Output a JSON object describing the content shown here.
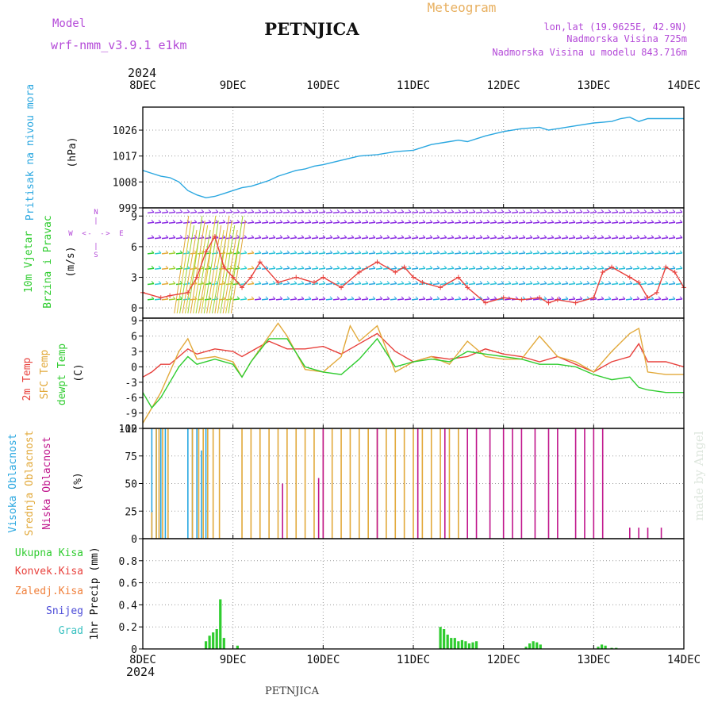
{
  "header": {
    "model_label": "Model",
    "model_name": "wrf-nmm_v3.9.1  e1km",
    "station": "PETNJICA",
    "product": "Meteogram",
    "lonlat": "lon,lat (19.9625E, 42.9N)",
    "altitude": "Nadmorska Visina 725m",
    "model_altitude": "Nadmorska Visina u modelu 843.716m",
    "year_top": "2024",
    "year_bottom": "2024",
    "footer_station": "PETNJICA",
    "watermark": "made by Angel"
  },
  "colors": {
    "pressure": "#2aa7e0",
    "temp2m": "#e8413c",
    "sfc_temp": "#e2a93a",
    "dewpoint": "#2fcc2f",
    "high_cloud": "#2aa7e0",
    "mid_cloud": "#e2a93a",
    "low_cloud": "#c0168c",
    "total_precip": "#2fcc2f",
    "conv_precip": "#e8413c",
    "frz_precip": "#f0803c",
    "snow": "#4b4bd8",
    "graupel": "#38c0c0",
    "purple_text": "#b44ad8",
    "gold_text": "#e8b060"
  },
  "chart_data": [
    {
      "type": "line",
      "id": "pressure",
      "ylabel": [
        "Pritisak na nivou mora",
        "(hPa)"
      ],
      "yticks": [
        999,
        1008,
        1017,
        1026
      ],
      "ylim": [
        999,
        1034
      ],
      "x_unit": "days from 2024-12-08 00Z",
      "xlim": [
        0,
        6
      ],
      "x_tick_labels": [
        "8DEC",
        "9DEC",
        "10DEC",
        "11DEC",
        "12DEC",
        "13DEC",
        "14DEC"
      ],
      "grid": true,
      "series": [
        {
          "key": "pressure",
          "x": [
            0,
            0.1,
            0.2,
            0.3,
            0.4,
            0.5,
            0.6,
            0.7,
            0.8,
            0.9,
            1.0,
            1.1,
            1.2,
            1.3,
            1.4,
            1.5,
            1.6,
            1.7,
            1.8,
            1.9,
            2.0,
            2.2,
            2.4,
            2.6,
            2.8,
            3.0,
            3.2,
            3.4,
            3.5,
            3.6,
            3.8,
            4.0,
            4.2,
            4.4,
            4.5,
            4.6,
            4.8,
            5.0,
            5.2,
            5.3,
            5.4,
            5.5,
            5.6,
            5.8,
            6.0
          ],
          "y": [
            1012,
            1011,
            1010,
            1009.5,
            1008,
            1005,
            1003.5,
            1002.5,
            1003,
            1004,
            1005,
            1006,
            1006.5,
            1007.5,
            1008.5,
            1010,
            1011,
            1012,
            1012.5,
            1013.5,
            1014,
            1015.5,
            1017,
            1017.5,
            1018.5,
            1019,
            1021,
            1022,
            1022.5,
            1022,
            1024,
            1025.5,
            1026.5,
            1027,
            1026,
            1026.5,
            1027.5,
            1028.5,
            1029,
            1030,
            1030.5,
            1029,
            1030,
            1030,
            1030
          ]
        }
      ]
    },
    {
      "type": "line",
      "id": "wind",
      "ylabel": [
        "10m Vjetar",
        "Brzina i Pravac",
        "(m/s)"
      ],
      "legend_labels": [
        "N",
        "W",
        "E",
        "S",
        "<",
        ">",
        "|",
        "-"
      ],
      "yticks": [
        0,
        3,
        6,
        9
      ],
      "ylim": [
        -1,
        9.8
      ],
      "xlim": [
        0,
        6
      ],
      "grid": true,
      "series": [
        {
          "name": "speed",
          "key": "temp2m",
          "x": [
            0,
            0.2,
            0.3,
            0.5,
            0.6,
            0.7,
            0.8,
            0.9,
            1.0,
            1.1,
            1.2,
            1.3,
            1.5,
            1.7,
            1.9,
            2.0,
            2.2,
            2.4,
            2.6,
            2.8,
            2.9,
            3.0,
            3.1,
            3.3,
            3.5,
            3.6,
            3.8,
            4.0,
            4.2,
            4.4,
            4.5,
            4.6,
            4.8,
            5.0,
            5.1,
            5.2,
            5.4,
            5.5,
            5.6,
            5.7,
            5.8,
            5.9,
            6.0
          ],
          "y": [
            1.5,
            1,
            1.2,
            1.5,
            3,
            5.5,
            7,
            4,
            3,
            2,
            3,
            4.5,
            2.5,
            3,
            2.5,
            3,
            2,
            3.5,
            4.5,
            3.5,
            4,
            3,
            2.5,
            2,
            3,
            2,
            0.5,
            1,
            0.8,
            1,
            0.5,
            0.8,
            0.5,
            1,
            3.5,
            4,
            3,
            2.5,
            1,
            1.5,
            4,
            3.5,
            2
          ]
        }
      ],
      "wind_rows": [
        0.8,
        2.3,
        3.8,
        5.3,
        6.8,
        8.3,
        9.3
      ]
    },
    {
      "type": "line",
      "id": "temperature",
      "ylabel": [
        "2m Temp",
        "SFC Temp",
        "dewpt Temp",
        "(C)"
      ],
      "yticks": [
        -12,
        -9,
        -6,
        -3,
        0,
        3,
        6,
        9
      ],
      "ylim": [
        -12,
        9.5
      ],
      "xlim": [
        0,
        6
      ],
      "grid": true,
      "series": [
        {
          "name": "2m Temp",
          "key": "temp2m",
          "x": [
            0,
            0.1,
            0.2,
            0.3,
            0.4,
            0.5,
            0.6,
            0.8,
            1.0,
            1.1,
            1.2,
            1.4,
            1.6,
            1.8,
            2.0,
            2.2,
            2.4,
            2.6,
            2.8,
            3.0,
            3.2,
            3.4,
            3.6,
            3.8,
            4.0,
            4.2,
            4.4,
            4.6,
            4.8,
            5.0,
            5.2,
            5.4,
            5.5,
            5.6,
            5.8,
            6.0
          ],
          "y": [
            -2,
            -1,
            0.5,
            0.5,
            2,
            3.5,
            2.5,
            3.5,
            3,
            2,
            3,
            5,
            3.5,
            3.5,
            4,
            2.5,
            4.5,
            6.5,
            3,
            1,
            2,
            1.5,
            2,
            3.5,
            2.5,
            2,
            1,
            2,
            0.5,
            -1,
            1,
            2,
            4.5,
            1,
            1,
            0
          ]
        },
        {
          "name": "SFC Temp",
          "key": "sfc_temp",
          "x": [
            0,
            0.1,
            0.2,
            0.3,
            0.4,
            0.5,
            0.6,
            0.8,
            1.0,
            1.1,
            1.2,
            1.4,
            1.5,
            1.6,
            1.8,
            2.0,
            2.2,
            2.3,
            2.4,
            2.6,
            2.8,
            3.0,
            3.2,
            3.4,
            3.6,
            3.8,
            4.0,
            4.2,
            4.4,
            4.6,
            4.8,
            5.0,
            5.2,
            5.4,
            5.5,
            5.6,
            5.8,
            6.0
          ],
          "y": [
            -11,
            -8,
            -5,
            -1,
            3,
            5.5,
            1.5,
            2,
            1,
            -2,
            1,
            6,
            8.5,
            6,
            -0.5,
            -1,
            2,
            8,
            5,
            8,
            -1,
            1,
            2,
            0.5,
            5,
            2,
            1.5,
            1.5,
            6,
            2,
            1,
            -1,
            3,
            6.5,
            7.5,
            -1,
            -1.5,
            -1.5
          ]
        },
        {
          "name": "dewpt Temp",
          "key": "dewpoint",
          "x": [
            0,
            0.1,
            0.2,
            0.3,
            0.4,
            0.5,
            0.6,
            0.8,
            1.0,
            1.1,
            1.2,
            1.4,
            1.6,
            1.8,
            2.0,
            2.2,
            2.4,
            2.6,
            2.8,
            3.0,
            3.2,
            3.4,
            3.6,
            3.8,
            4.0,
            4.2,
            4.4,
            4.6,
            4.8,
            5.0,
            5.2,
            5.4,
            5.5,
            5.6,
            5.8,
            6.0
          ],
          "y": [
            -5,
            -8,
            -6,
            -3,
            0,
            2,
            0.5,
            1.5,
            0.5,
            -2,
            1,
            5.5,
            5.5,
            0,
            -1,
            -1.5,
            1.5,
            5.5,
            0,
            1,
            1.5,
            1,
            3,
            2.5,
            2,
            1.5,
            0.5,
            0.5,
            0,
            -1.5,
            -2.5,
            -2,
            -4,
            -4.5,
            -5,
            -5
          ]
        }
      ]
    },
    {
      "type": "bar",
      "id": "clouds",
      "ylabel": [
        "Visoka Oblacnost",
        "Srednja Oblacnost",
        "Niska Oblacnost",
        "(%)"
      ],
      "yticks": [
        0,
        25,
        50,
        75,
        100
      ],
      "ylim": [
        0,
        100
      ],
      "xlim": [
        0,
        6
      ],
      "grid": true,
      "series": [
        {
          "name": "Visoka Oblacnost",
          "key": "high_cloud",
          "x": [
            0.1,
            0.15,
            0.2,
            0.25,
            0.5,
            0.55,
            0.6,
            0.65,
            0.7
          ],
          "y": [
            100,
            100,
            100,
            100,
            100,
            100,
            100,
            80,
            100
          ]
        },
        {
          "name": "Srednja Oblacnost",
          "key": "mid_cloud",
          "x": [
            0.1,
            0.15,
            0.18,
            0.22,
            0.28,
            0.55,
            0.62,
            0.67,
            0.72,
            0.78,
            0.85,
            1.1,
            1.2,
            1.3,
            1.4,
            1.5,
            1.6,
            1.7,
            1.8,
            1.9,
            2.0,
            2.1,
            2.2,
            2.3,
            2.4,
            2.5,
            2.6,
            2.7,
            2.8,
            2.9,
            3.0,
            3.1,
            3.2,
            3.3,
            3.4,
            3.5
          ],
          "y": [
            24,
            100,
            100,
            100,
            100,
            100,
            100,
            100,
            100,
            100,
            100,
            100,
            100,
            100,
            100,
            100,
            100,
            100,
            100,
            100,
            100,
            100,
            100,
            100,
            100,
            100,
            100,
            100,
            100,
            100,
            100,
            100,
            100,
            100,
            100,
            100
          ]
        },
        {
          "name": "Niska Oblacnost",
          "key": "low_cloud",
          "x": [
            1.55,
            1.95,
            2.0,
            2.6,
            3.05,
            3.35,
            3.6,
            3.7,
            3.85,
            4.0,
            4.1,
            4.2,
            4.35,
            4.5,
            4.6,
            4.8,
            4.9,
            5.0,
            5.1,
            5.4,
            5.5,
            5.6,
            5.75
          ],
          "y": [
            50,
            55,
            100,
            100,
            100,
            100,
            100,
            100,
            100,
            100,
            100,
            100,
            100,
            100,
            100,
            100,
            100,
            100,
            100,
            10,
            10,
            10,
            10
          ]
        }
      ]
    },
    {
      "type": "bar",
      "id": "precip",
      "ylabel": [
        "1hr Precip (mm)"
      ],
      "legend": [
        "Ukupna Kisa",
        "Konvek.Kisa",
        "Zaledj.Kisa",
        "Snijeg",
        "Grad"
      ],
      "yticks": [
        0,
        0.2,
        0.4,
        0.6,
        0.8
      ],
      "ylim": [
        0,
        1
      ],
      "xlim": [
        0,
        6
      ],
      "x_tick_labels": [
        "8DEC",
        "9DEC",
        "10DEC",
        "11DEC",
        "12DEC",
        "13DEC",
        "14DEC"
      ],
      "grid": true,
      "series": [
        {
          "name": "Ukupna Kisa",
          "key": "total_precip",
          "x": [
            0.7,
            0.74,
            0.78,
            0.82,
            0.86,
            0.9,
            1.05,
            3.3,
            3.34,
            3.38,
            3.42,
            3.46,
            3.5,
            3.54,
            3.58,
            3.62,
            3.66,
            3.7,
            4.25,
            4.29,
            4.33,
            4.37,
            4.41,
            5.05,
            5.09,
            5.13,
            5.2,
            5.25
          ],
          "y": [
            0.07,
            0.12,
            0.15,
            0.18,
            0.45,
            0.1,
            0.03,
            0.2,
            0.18,
            0.13,
            0.1,
            0.1,
            0.07,
            0.08,
            0.07,
            0.05,
            0.06,
            0.07,
            0.02,
            0.05,
            0.07,
            0.06,
            0.04,
            0.02,
            0.04,
            0.03,
            0.01,
            0.01
          ]
        }
      ]
    }
  ]
}
